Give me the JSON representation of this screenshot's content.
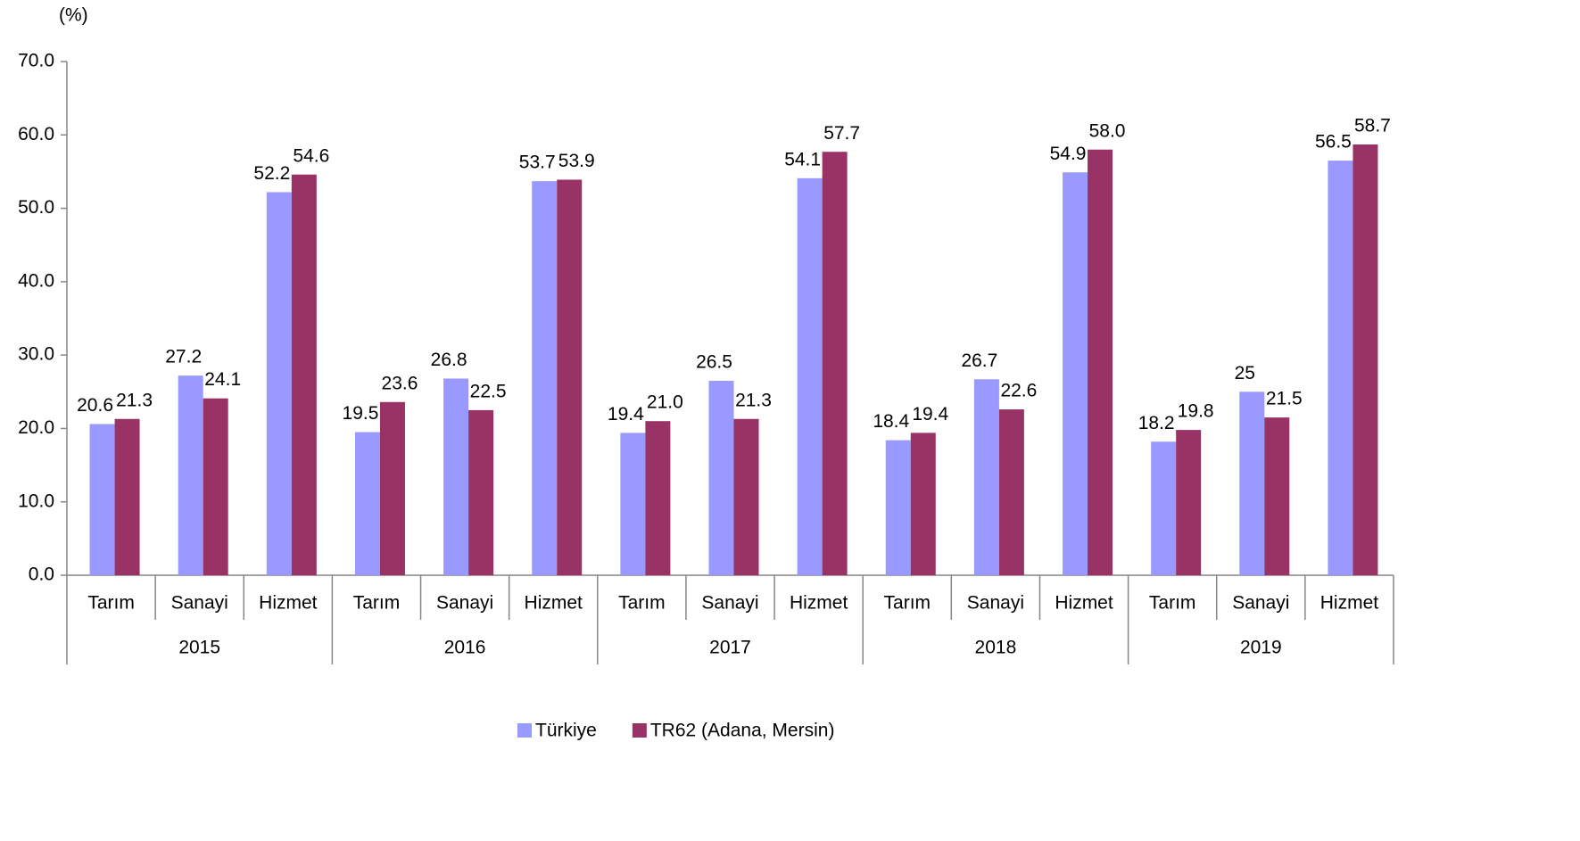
{
  "chart_data": {
    "type": "bar",
    "y_label": "(%)",
    "categories": [
      "Tarım",
      "Sanayi",
      "Hizmet",
      "Tarım",
      "Sanayi",
      "Hizmet",
      "Tarım",
      "Sanayi",
      "Hizmet",
      "Tarım",
      "Sanayi",
      "Hizmet",
      "Tarım",
      "Sanayi",
      "Hizmet"
    ],
    "groups": [
      "2015",
      "2016",
      "2017",
      "2018",
      "2019"
    ],
    "series": [
      {
        "name": "Türkiye",
        "color": "#9999ff",
        "values": [
          20.6,
          27.2,
          52.2,
          19.5,
          26.8,
          53.7,
          19.4,
          26.5,
          54.1,
          18.4,
          26.7,
          54.9,
          18.2,
          25,
          56.5
        ],
        "value_labels": [
          "20.6",
          "27.2",
          "52.2",
          "19.5",
          "26.8",
          "53.7",
          "19.4",
          "26.5",
          "54.1",
          "18.4",
          "26.7",
          "54.9",
          "18.2",
          "25",
          "56.5"
        ]
      },
      {
        "name": "TR62 (Adana, Mersin)",
        "color": "#993366",
        "values": [
          21.3,
          24.1,
          54.6,
          23.6,
          22.5,
          53.9,
          21.0,
          21.3,
          57.7,
          19.4,
          22.6,
          58.0,
          19.8,
          21.5,
          58.7
        ],
        "value_labels": [
          "21.3",
          "24.1",
          "54.6",
          "23.6",
          "22.5",
          "53.9",
          "21.0",
          "21.3",
          "57.7",
          "19.4",
          "22.6",
          "58.0",
          "19.8",
          "21.5",
          "58.7"
        ]
      }
    ],
    "ylim": [
      0,
      70
    ],
    "yticks": [
      {
        "value": 0,
        "label": "0.0"
      },
      {
        "value": 10,
        "label": "10.0"
      },
      {
        "value": 20,
        "label": "20.0"
      },
      {
        "value": 30,
        "label": "30.0"
      },
      {
        "value": 40,
        "label": "40.0"
      },
      {
        "value": 50,
        "label": "50.0"
      },
      {
        "value": 60,
        "label": "60.0"
      },
      {
        "value": 70,
        "label": "70.0"
      }
    ],
    "legend": "bottom"
  }
}
